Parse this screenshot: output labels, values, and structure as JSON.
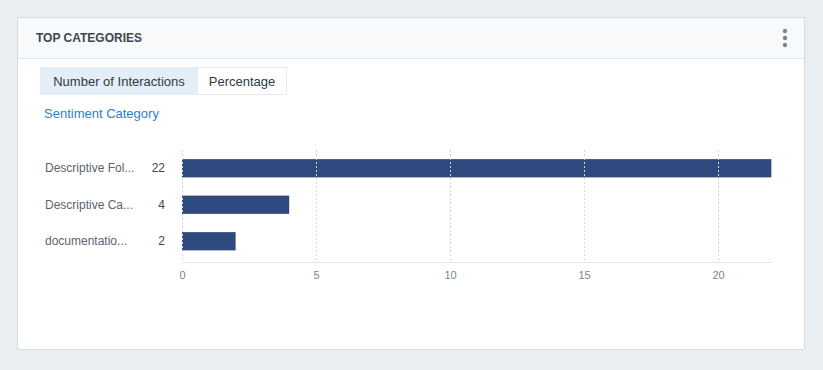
{
  "tabs": [
    "Number of Interactions",
    "Percentage"
  ],
  "chart_data": {
    "type": "bar",
    "orientation": "horizontal",
    "title": "TOP CATEGORIES",
    "subtitle": "Sentiment Category",
    "categories": [
      "Descriptive Fol...",
      "Descriptive Ca...",
      "documentatio..."
    ],
    "values": [
      22,
      4,
      2
    ],
    "color": "#2e4a7e",
    "xlim": [
      0,
      22
    ],
    "xticks": [
      0,
      5,
      10,
      15,
      20
    ],
    "grid": true,
    "data_labels": true
  }
}
